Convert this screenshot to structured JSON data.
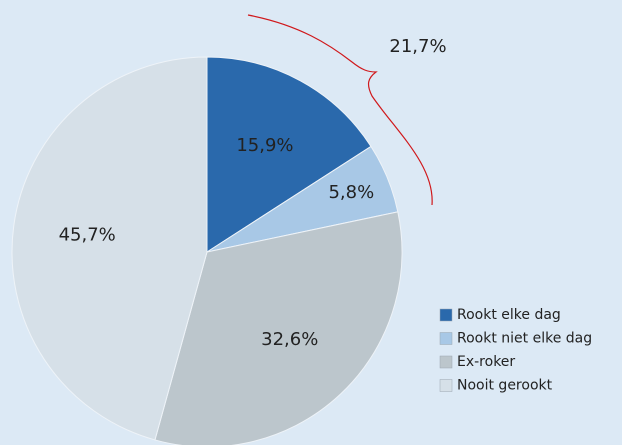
{
  "chart_data": {
    "type": "pie",
    "categories": [
      "Rookt elke dag",
      "Rookt niet elke dag",
      "Ex-roker",
      "Nooit gerookt"
    ],
    "values": [
      15.9,
      5.8,
      32.6,
      45.7
    ],
    "value_labels": [
      "15,9%",
      "5,8%",
      "32,6%",
      "45,7%"
    ],
    "colors": [
      "#2a69ac",
      "#a8c8e6",
      "#bcc6cc",
      "#d6e0e8"
    ],
    "annotation": "21,7%",
    "legend": "right"
  }
}
